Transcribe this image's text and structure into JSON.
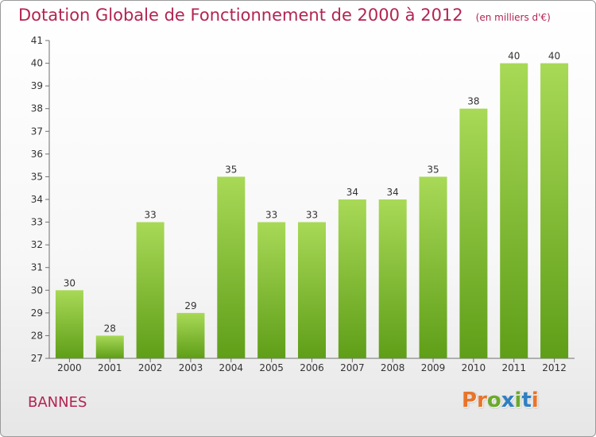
{
  "header": {
    "title": "Dotation Globale de Fonctionnement de 2000 à 2012",
    "unit": "(en milliers d'€)"
  },
  "footer": {
    "place": "BANNES"
  },
  "logo": {
    "text": "Proxiti",
    "letters": [
      {
        "char": "P",
        "color": "#e8742a"
      },
      {
        "char": "r",
        "color": "#e8742a"
      },
      {
        "char": "o",
        "color": "#6aaa2a"
      },
      {
        "char": "x",
        "color": "#2f7fc1"
      },
      {
        "char": "i",
        "color": "#6aaa2a"
      },
      {
        "char": "t",
        "color": "#2f7fc1"
      },
      {
        "char": "i",
        "color": "#e8742a"
      }
    ]
  },
  "colors": {
    "title": "#b32452",
    "bar_light": "#a8d957",
    "bar_dark": "#5f9e18",
    "axis": "#707070",
    "text": "#333333"
  },
  "chart_data": {
    "type": "bar",
    "title": "Dotation Globale de Fonctionnement de 2000 à 2012",
    "subtitle": "(en milliers d'€)",
    "categories": [
      "2000",
      "2001",
      "2002",
      "2003",
      "2004",
      "2005",
      "2006",
      "2007",
      "2008",
      "2009",
      "2010",
      "2011",
      "2012"
    ],
    "values": [
      30,
      28,
      33,
      29,
      35,
      33,
      33,
      34,
      34,
      35,
      38,
      40,
      40
    ],
    "ylim": [
      27,
      41
    ],
    "yticks": [
      27,
      28,
      29,
      30,
      31,
      32,
      33,
      34,
      35,
      36,
      37,
      38,
      39,
      40,
      41
    ],
    "grid": false,
    "legend": "none"
  }
}
